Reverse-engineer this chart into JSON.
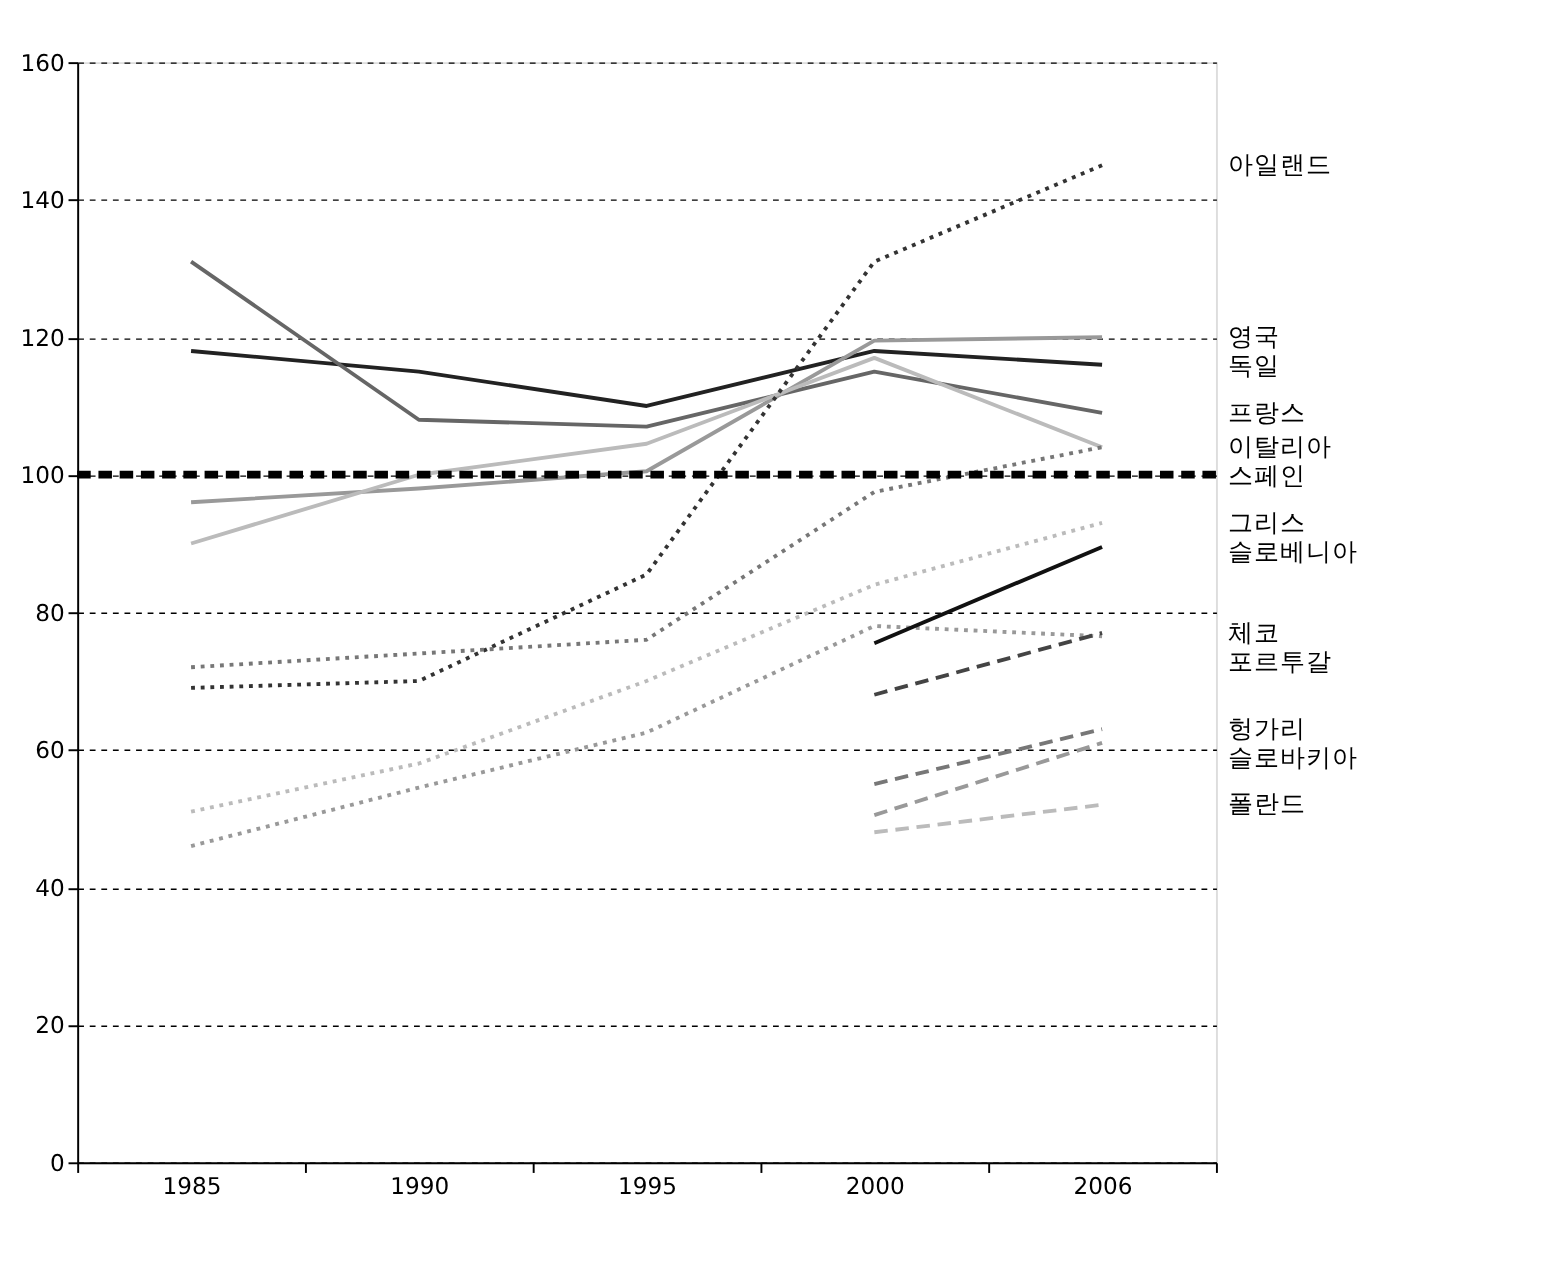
{
  "chart_data": {
    "type": "line",
    "categories": [
      "1985",
      "1990",
      "1995",
      "2000",
      "2006"
    ],
    "ylim": [
      0,
      160
    ],
    "yticks": [
      0,
      20,
      40,
      60,
      80,
      100,
      120,
      140,
      160
    ],
    "grid": "y",
    "series": [
      {
        "name": "독일",
        "color": "#222222",
        "line_style": "solid",
        "values": [
          118,
          115,
          110,
          118,
          116
        ]
      },
      {
        "name": "프랑스",
        "color": "#666666",
        "line_style": "solid",
        "values": [
          131,
          108,
          107,
          115,
          109
        ]
      },
      {
        "name": "영국",
        "color": "#999999",
        "line_style": "solid",
        "values": [
          96,
          98,
          100.5,
          119.5,
          120
        ]
      },
      {
        "name": "이탈리아",
        "color": "#bbbbbb",
        "line_style": "solid",
        "values": [
          90,
          100,
          104.5,
          117,
          104
        ]
      },
      {
        "name": "아일랜드",
        "color": "#333333",
        "line_style": "dotted",
        "values": [
          69,
          70,
          85.5,
          131,
          145
        ]
      },
      {
        "name": "스페인",
        "color": "#777777",
        "line_style": "dotted",
        "values": [
          72,
          74,
          76,
          97.5,
          104
        ]
      },
      {
        "name": "그리스",
        "color": "#bbbbbb",
        "line_style": "dotted",
        "values": [
          51,
          58,
          70,
          84,
          93
        ]
      },
      {
        "name": "포르투갈",
        "color": "#999999",
        "line_style": "dotted",
        "values": [
          46,
          54.5,
          62.5,
          78,
          76.5
        ]
      },
      {
        "name": "슬로베니아",
        "color": "#111111",
        "line_style": "solid",
        "values": [
          null,
          null,
          null,
          75.5,
          89.5
        ]
      },
      {
        "name": "체코",
        "color": "#444444",
        "line_style": "dashed",
        "values": [
          null,
          null,
          null,
          68,
          77
        ]
      },
      {
        "name": "헝가리",
        "color": "#777777",
        "line_style": "dashed",
        "values": [
          null,
          null,
          null,
          55,
          63
        ]
      },
      {
        "name": "슬로바키아",
        "color": "#999999",
        "line_style": "dashed",
        "values": [
          null,
          null,
          null,
          50.5,
          61
        ]
      },
      {
        "name": "폴란드",
        "color": "#bbbbbb",
        "line_style": "dashed",
        "values": [
          null,
          null,
          null,
          48,
          52
        ]
      }
    ],
    "ref_lines": [
      {
        "axis": "y",
        "value": 100,
        "color": "#000000",
        "line_style": "dashed"
      }
    ]
  }
}
